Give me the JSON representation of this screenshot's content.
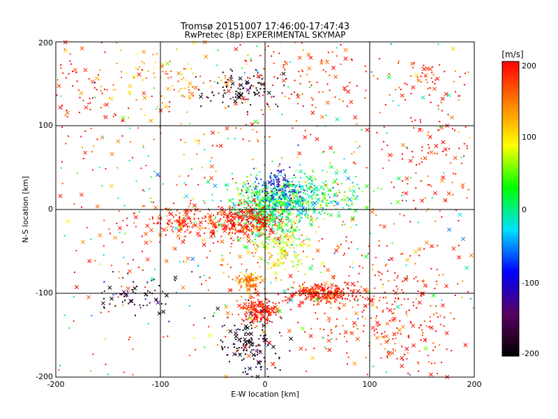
{
  "chart_data": {
    "type": "scatter",
    "title": "Tromsø 20151007 17:46:00-17:47:43",
    "subtitle": "RwPretec (8p) EXPERIMENTAL SKYMAP",
    "xlabel": "E-W location [km]",
    "ylabel": "N-S location [km]",
    "xlim": [
      -200,
      200
    ],
    "ylim": [
      -200,
      200
    ],
    "x_ticks": [
      "-200",
      "-100",
      "0",
      "100",
      "200"
    ],
    "y_ticks": [
      "-200",
      "-100",
      "0",
      "100",
      "200"
    ],
    "grid": true,
    "markers": [
      "dot",
      "cross"
    ],
    "colorbar": {
      "label": "[m/s]",
      "range": [
        -200,
        200
      ],
      "ticks": [
        "-200",
        "-100",
        "0",
        "100",
        "200"
      ],
      "colormap": [
        "#000000",
        "#5a0060",
        "#0000ff",
        "#00e0ff",
        "#00ff00",
        "#ffff00",
        "#ff8000",
        "#ff0000"
      ]
    },
    "clusters": [
      {
        "x": 0,
        "y": 0,
        "sx": 18,
        "sy": 16,
        "v": 20,
        "n": 450
      },
      {
        "x": 25,
        "y": 15,
        "sx": 18,
        "sy": 12,
        "v": -10,
        "n": 220
      },
      {
        "x": 55,
        "y": 15,
        "sx": 22,
        "sy": 16,
        "v": 30,
        "n": 160
      },
      {
        "x": 10,
        "y": 30,
        "sx": 12,
        "sy": 12,
        "v": -100,
        "n": 90
      },
      {
        "x": -20,
        "y": -15,
        "sx": 18,
        "sy": 10,
        "v": 190,
        "n": 320
      },
      {
        "x": -80,
        "y": -15,
        "sx": 20,
        "sy": 10,
        "v": 190,
        "n": 140
      },
      {
        "x": 20,
        "y": -50,
        "sx": 14,
        "sy": 18,
        "v": 90,
        "n": 150
      },
      {
        "x": -15,
        "y": -85,
        "sx": 6,
        "sy": 6,
        "v": 130,
        "n": 90
      },
      {
        "x": -5,
        "y": -120,
        "sx": 10,
        "sy": 8,
        "v": 195,
        "n": 180
      },
      {
        "x": 55,
        "y": -100,
        "sx": 18,
        "sy": 6,
        "v": 195,
        "n": 260
      },
      {
        "x": 120,
        "y": -130,
        "sx": 40,
        "sy": 40,
        "v": 190,
        "n": 280
      },
      {
        "x": -15,
        "y": -160,
        "sx": 14,
        "sy": 20,
        "v": -190,
        "n": 150
      },
      {
        "x": -20,
        "y": 145,
        "sx": 18,
        "sy": 10,
        "v": -190,
        "n": 100
      },
      {
        "x": -90,
        "y": 150,
        "sx": 30,
        "sy": 22,
        "v": 130,
        "n": 110
      },
      {
        "x": -120,
        "y": -100,
        "sx": 25,
        "sy": 15,
        "v": -170,
        "n": 70
      },
      {
        "x": 165,
        "y": 90,
        "sx": 25,
        "sy": 50,
        "v": 195,
        "n": 110
      },
      {
        "x": -180,
        "y": 140,
        "sx": 20,
        "sy": 40,
        "v": 190,
        "n": 70
      },
      {
        "x": 150,
        "y": 160,
        "sx": 10,
        "sy": 10,
        "v": 190,
        "n": 30
      },
      {
        "x": 30,
        "y": 150,
        "sx": 40,
        "sy": 30,
        "v": 190,
        "n": 110
      },
      {
        "x": 0,
        "y": 0,
        "sx": 150,
        "sy": 150,
        "v": 170,
        "n": 650
      },
      {
        "x": 0,
        "y": 0,
        "sx": 130,
        "sy": 130,
        "v": 0,
        "n": 260
      }
    ]
  }
}
